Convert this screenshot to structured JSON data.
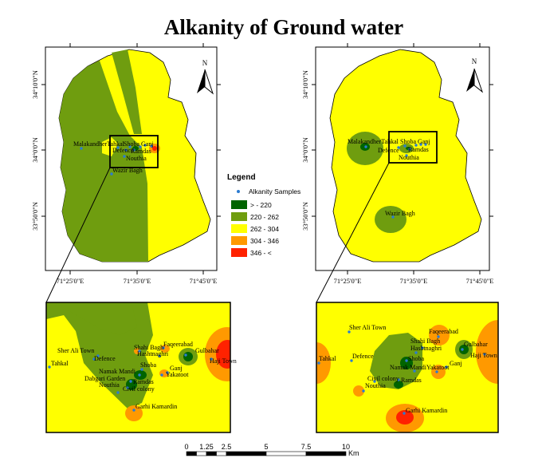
{
  "title": "Alkanity of Ground water",
  "colors": {
    "class1": "#006400",
    "class2": "#6f9d0f",
    "class3": "#ffff00",
    "class4": "#ff9900",
    "class5": "#ff2200",
    "sample": "#2b7bd1"
  },
  "legend": {
    "title": "Legend",
    "samples_label": "Alkanity Samples",
    "classes": [
      "> - 220",
      "220 - 262",
      "262 - 304",
      "304 - 346",
      "346 - <"
    ]
  },
  "north_label": "N",
  "lat_labels": [
    "34°10'0\"N",
    "34°0'0\"N",
    "33°50'0\"N"
  ],
  "lon_labels": [
    "71°25'0\"E",
    "71°35'0\"E",
    "71°45'0\"E"
  ],
  "left_overview_labels": [
    "MalakandherTahkal",
    "Shoba Ganj",
    "Defence",
    "Ramdas",
    "Nouthia",
    "Wazir Bagh"
  ],
  "right_overview_labels": [
    "MalakandherTahkal",
    "Shoba Ganj",
    "Defence",
    "Ramdas",
    "Nouthia",
    "Wazir Bagh"
  ],
  "left_inset_labels": [
    "Sher Ali Town",
    "Tahkal",
    "Defence",
    "Shahi Bagh",
    "Faqeerabad",
    "Hashtnaghri",
    "Gulbahar",
    "Haji Town",
    "Shoba",
    "Ganj",
    "Namak Mandi",
    "Yakatoot",
    "Dabgari Garden",
    "Ramdas",
    "Nouthia",
    "Civil colony",
    "Garhi Kamardin"
  ],
  "right_inset_labels": [
    "Sher Ali Town",
    "Faqeerabad",
    "Shahi Bagh",
    "Hashtnaghri",
    "Gulbahar",
    "Haji Town",
    "Tahkal",
    "Defence",
    "Shoba",
    "Namak Mandi",
    "Yakatoot",
    "Ganj",
    "Civil colony",
    "Ramdas",
    "Nouthia",
    "Garhi Kamardin"
  ],
  "scale": {
    "ticks": [
      "0",
      "1.25",
      "2.5",
      "5",
      "7.5",
      "10"
    ],
    "values": [
      0,
      1.25,
      2.5,
      5,
      7.5,
      10
    ],
    "unit": "Km"
  }
}
